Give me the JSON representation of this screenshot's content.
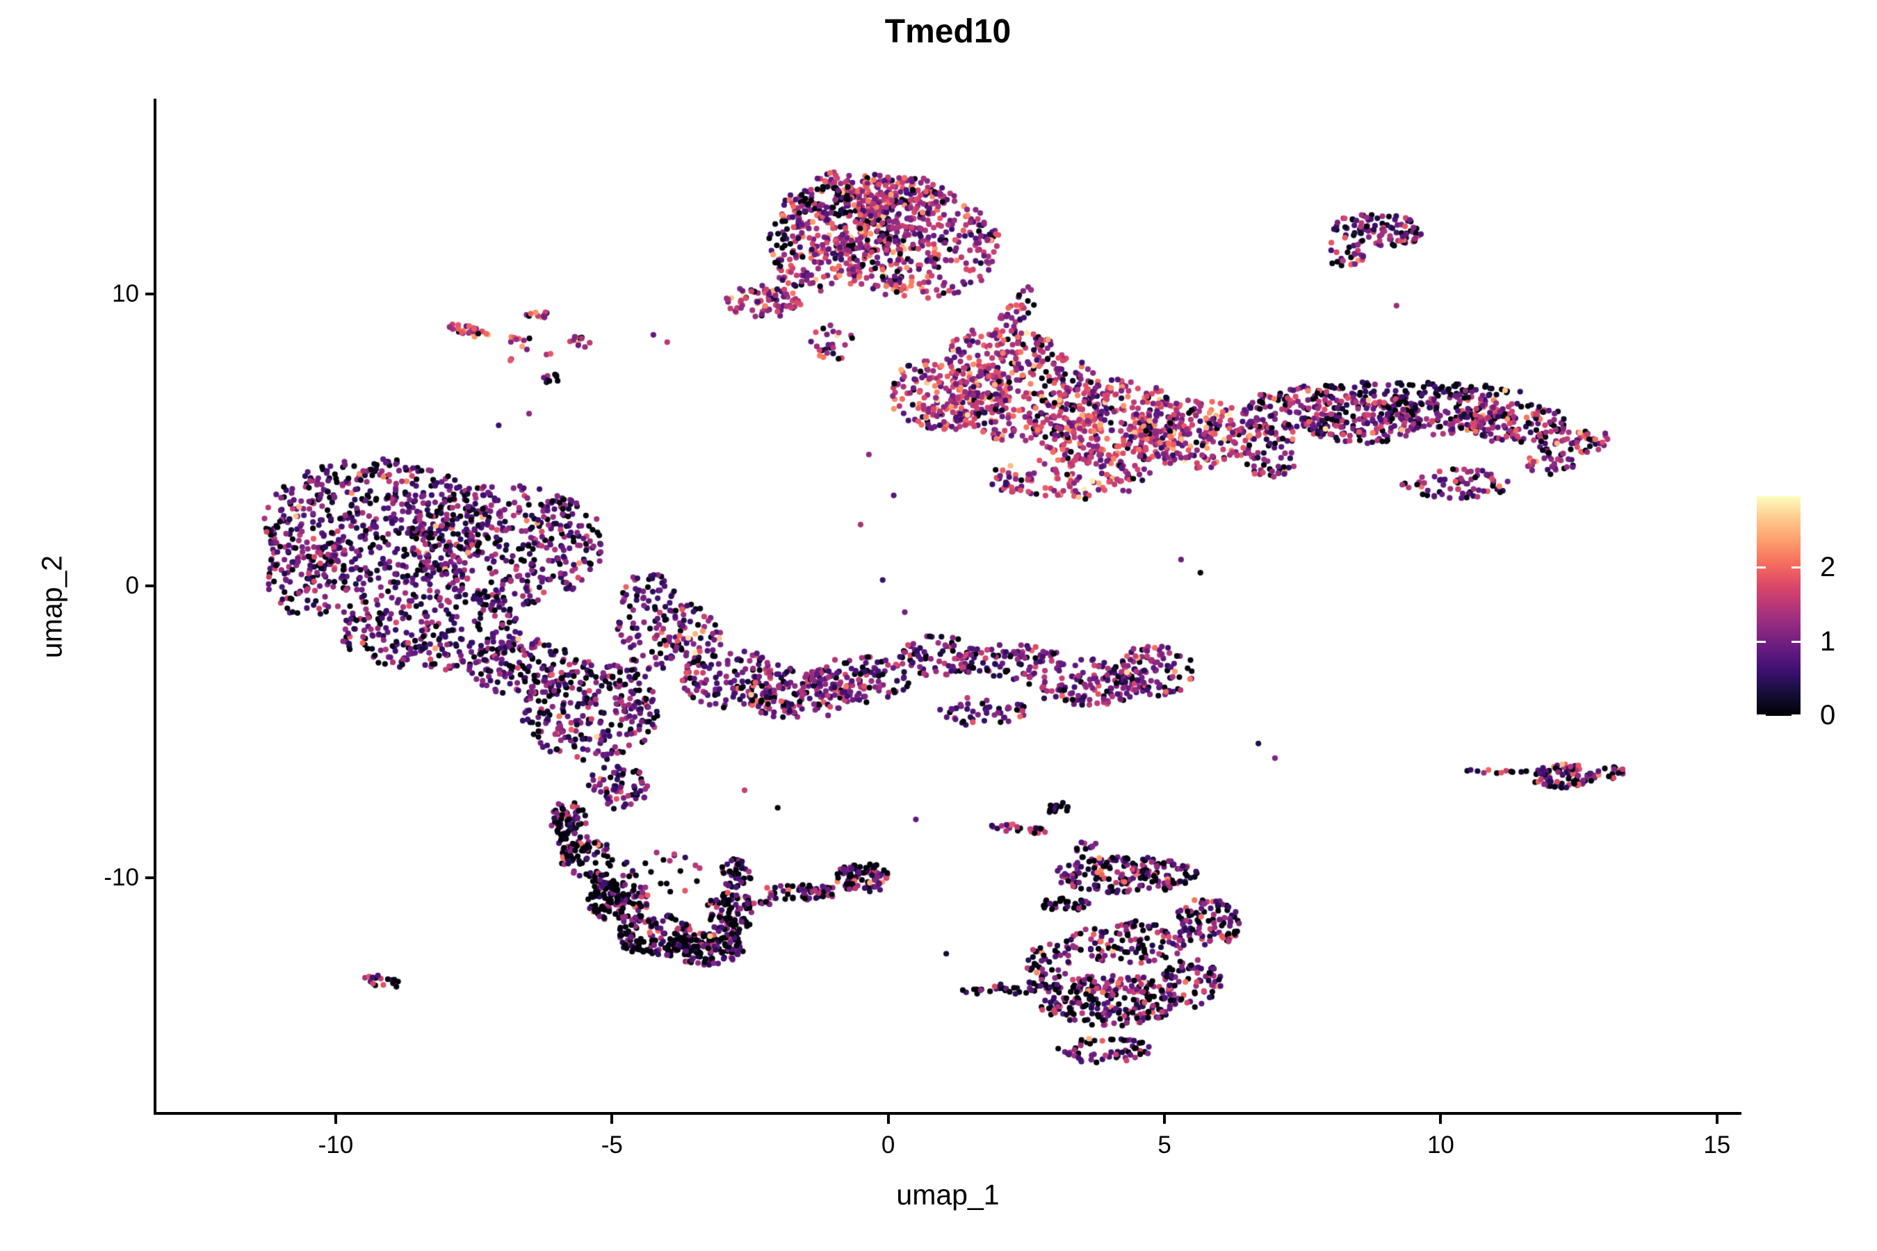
{
  "title": "Tmed10",
  "axes": {
    "x": {
      "label": "umap_1",
      "tick_labels": [
        "-10",
        "-5",
        "0",
        "5",
        "10",
        "15"
      ],
      "tick_values": [
        -10,
        -5,
        0,
        5,
        10,
        15
      ],
      "domain": [
        -13.27,
        15.43
      ]
    },
    "y": {
      "label": "umap_2",
      "tick_labels": [
        "10",
        "0",
        "-10"
      ],
      "tick_values": [
        10,
        0,
        -10
      ],
      "domain": [
        -18.07,
        16.69
      ]
    }
  },
  "colorbar": {
    "tick_labels": [
      "0",
      "1",
      "2"
    ],
    "tick_values": [
      0,
      1,
      2
    ],
    "vmin": 0,
    "vmax": 2.98,
    "palette": "magma",
    "stops": [
      "#000004",
      "#140e36",
      "#3b0f70",
      "#641a80",
      "#8c2981",
      "#b73779",
      "#de4968",
      "#f7705c",
      "#fe9f6d",
      "#feca8d",
      "#fcfdbf"
    ]
  },
  "chart_data": {
    "type": "scatter",
    "title": "Tmed10",
    "xlabel": "umap_1",
    "ylabel": "umap_2",
    "xlim": [
      -13.27,
      15.43
    ],
    "ylim": [
      -18.07,
      16.69
    ],
    "legend": "expression colorbar 0-2, magma palette, right side",
    "grid": false,
    "point_radius_px": 4.1,
    "seed": 7,
    "clusters": [
      {
        "name": "top-center",
        "expr": {
          "zero": 0.07,
          "mean": 1.35,
          "sd": 0.55
        },
        "blobs": [
          [
            -0.6,
            12.7,
            1.35,
            1.55,
            0,
            300
          ],
          [
            0.55,
            11.7,
            1.5,
            1.9,
            0,
            340
          ],
          [
            0.15,
            13.3,
            1.0,
            0.8,
            0,
            120
          ],
          [
            -2.25,
            9.75,
            0.7,
            0.55,
            0,
            80
          ],
          [
            -1.25,
            10.9,
            0.8,
            0.8,
            0,
            90
          ],
          [
            -1.0,
            8.4,
            0.4,
            0.7,
            0,
            25
          ],
          [
            2.3,
            9.3,
            0.25,
            1.1,
            -18,
            35
          ]
        ]
      },
      {
        "name": "top-center-dark-edge",
        "expr": {
          "zero": 0.5,
          "mean": 0.6,
          "sd": 0.45
        },
        "blobs": [
          [
            -1.1,
            13.2,
            0.5,
            0.6,
            0,
            40
          ],
          [
            -1.9,
            11.7,
            0.3,
            0.8,
            0,
            25
          ]
        ]
      },
      {
        "name": "top-right-island",
        "expr": {
          "zero": 0.15,
          "mean": 1.05,
          "sd": 0.5
        },
        "blobs": [
          [
            8.9,
            12.2,
            0.85,
            0.55,
            -10,
            95
          ],
          [
            8.25,
            11.4,
            0.4,
            0.45,
            0,
            25
          ]
        ]
      },
      {
        "name": "left-islands",
        "expr": {
          "zero": 0.12,
          "mean": 1.6,
          "sd": 0.55
        },
        "blobs": [
          [
            -7.6,
            8.75,
            0.42,
            0.16,
            -30,
            30
          ],
          [
            -6.85,
            8.45,
            0.4,
            0.1,
            0,
            7
          ],
          [
            -6.35,
            9.3,
            0.24,
            0.16,
            0,
            11
          ],
          [
            -5.6,
            8.35,
            0.24,
            0.2,
            0,
            11
          ],
          [
            -6.55,
            7.9,
            0.5,
            0.45,
            0,
            6
          ]
        ]
      },
      {
        "name": "left-dark-clump",
        "expr": {
          "zero": 0.5,
          "mean": 0.5,
          "sd": 0.4
        },
        "blobs": [
          [
            -6.05,
            7.1,
            0.22,
            0.17,
            0,
            9
          ]
        ]
      },
      {
        "name": "left-large",
        "expr": {
          "zero": 0.13,
          "mean": 0.85,
          "sd": 0.5
        },
        "blobs": [
          [
            -9.3,
            2.1,
            2.0,
            2.3,
            0,
            520
          ],
          [
            -6.9,
            1.4,
            1.8,
            2.1,
            0,
            430
          ],
          [
            -8.3,
            -1.4,
            1.7,
            1.5,
            0,
            270
          ],
          [
            -10.5,
            0.3,
            0.8,
            1.4,
            0,
            90
          ],
          [
            -5.4,
            -4.3,
            1.25,
            1.7,
            0,
            270
          ],
          [
            -4.9,
            -6.9,
            0.55,
            0.75,
            0,
            65
          ],
          [
            -4.35,
            -1.3,
            0.6,
            1.9,
            0,
            100
          ],
          [
            -6.6,
            -2.8,
            1.0,
            1.0,
            0,
            130
          ]
        ]
      },
      {
        "name": "mid-band",
        "expr": {
          "zero": 0.12,
          "mean": 0.95,
          "sd": 0.5
        },
        "blobs": [
          [
            -3.6,
            -1.7,
            0.6,
            1.1,
            0,
            70
          ],
          [
            -2.8,
            -3.2,
            0.95,
            1.0,
            0,
            130
          ],
          [
            -1.6,
            -3.7,
            1.0,
            0.9,
            0,
            140
          ],
          [
            -0.5,
            -3.2,
            0.9,
            0.8,
            0,
            110
          ]
        ]
      },
      {
        "name": "mid-right-arm",
        "expr": {
          "zero": 0.12,
          "mean": 1.0,
          "sd": 0.5
        },
        "blobs": [
          [
            0.9,
            -2.4,
            0.7,
            0.7,
            0,
            70
          ],
          [
            2.2,
            -2.6,
            1.0,
            0.6,
            0,
            90
          ],
          [
            3.6,
            -3.3,
            1.1,
            0.8,
            0,
            130
          ],
          [
            4.8,
            -2.9,
            0.75,
            0.9,
            0,
            90
          ],
          [
            1.7,
            -4.3,
            0.8,
            0.5,
            0,
            50
          ]
        ]
      },
      {
        "name": "central-right",
        "expr": {
          "zero": 0.06,
          "mean": 1.45,
          "sd": 0.55
        },
        "blobs": [
          [
            1.1,
            6.6,
            1.1,
            1.3,
            0,
            200
          ],
          [
            2.5,
            6.5,
            1.45,
            1.6,
            0,
            330
          ],
          [
            4.0,
            5.6,
            1.4,
            1.5,
            0,
            300
          ],
          [
            5.5,
            5.2,
            1.2,
            1.2,
            0,
            220
          ],
          [
            3.3,
            3.7,
            1.5,
            0.75,
            0,
            120
          ],
          [
            2.0,
            8.3,
            0.95,
            0.55,
            0,
            70
          ]
        ]
      },
      {
        "name": "right-elongated",
        "expr": {
          "zero": 0.14,
          "mean": 1.1,
          "sd": 0.55
        },
        "blobs": [
          [
            7.3,
            5.9,
            0.95,
            1.0,
            0,
            150
          ],
          [
            8.6,
            5.75,
            1.1,
            0.9,
            0,
            170
          ],
          [
            10.0,
            5.95,
            1.15,
            0.8,
            0,
            160
          ],
          [
            11.3,
            5.6,
            1.0,
            0.7,
            0,
            130
          ],
          [
            12.4,
            4.95,
            0.7,
            0.5,
            0,
            60
          ],
          [
            10.3,
            3.5,
            1.0,
            0.5,
            0,
            70
          ],
          [
            12.0,
            4.2,
            0.45,
            0.4,
            0,
            30
          ],
          [
            6.9,
            4.3,
            0.5,
            0.6,
            0,
            40
          ]
        ]
      },
      {
        "name": "right-elongated-top-edge",
        "expr": {
          "zero": 0.45,
          "mean": 0.6,
          "sd": 0.4
        },
        "blobs": [
          [
            9.7,
            6.75,
            1.8,
            0.22,
            -3,
            70
          ]
        ]
      },
      {
        "name": "right-island",
        "expr": {
          "zero": 0.25,
          "mean": 1.1,
          "sd": 0.6
        },
        "blobs": [
          [
            12.2,
            -6.5,
            0.6,
            0.42,
            0,
            85
          ],
          [
            11.0,
            -6.35,
            0.55,
            0.1,
            0,
            12
          ],
          [
            13.1,
            -6.4,
            0.27,
            0.22,
            0,
            18
          ]
        ]
      },
      {
        "name": "bottom-left-crescent",
        "expr": {
          "zero": 0.3,
          "mean": 0.85,
          "sd": 0.6
        },
        "blobs": [
          [
            -5.8,
            -7.95,
            0.38,
            0.55,
            0,
            45
          ],
          [
            -5.45,
            -9.3,
            0.48,
            0.7,
            0,
            70
          ],
          [
            -4.9,
            -10.8,
            0.55,
            0.75,
            0,
            90
          ],
          [
            -4.2,
            -11.9,
            0.7,
            0.65,
            0,
            110
          ],
          [
            -3.3,
            -12.45,
            0.7,
            0.55,
            0,
            110
          ],
          [
            -2.85,
            -11.2,
            0.45,
            0.75,
            0,
            80
          ],
          [
            -2.75,
            -9.85,
            0.3,
            0.5,
            0,
            40
          ],
          [
            -4.3,
            -9.9,
            0.95,
            0.8,
            0,
            35
          ]
        ]
      },
      {
        "name": "crescent-dark-edge",
        "expr": {
          "zero": 0.55,
          "mean": 0.5,
          "sd": 0.4
        },
        "blobs": [
          [
            -5.75,
            -8.6,
            0.25,
            0.8,
            10,
            40
          ],
          [
            -5.1,
            -10.4,
            0.3,
            0.8,
            0,
            40
          ],
          [
            -4.0,
            -12.35,
            0.8,
            0.3,
            0,
            50
          ],
          [
            -2.95,
            -12.0,
            0.25,
            0.8,
            0,
            30
          ]
        ]
      },
      {
        "name": "bottom-dash-island",
        "expr": {
          "zero": 0.32,
          "mean": 0.9,
          "sd": 0.55
        },
        "blobs": [
          [
            -0.45,
            -10.0,
            0.58,
            0.48,
            0,
            95
          ],
          [
            -1.6,
            -10.5,
            0.78,
            0.26,
            0,
            55
          ],
          [
            -2.3,
            -10.85,
            0.32,
            0.12,
            0,
            10
          ]
        ]
      },
      {
        "name": "tiny-bottom-left-island",
        "expr": {
          "zero": 0.3,
          "mean": 1.0,
          "sd": 0.6
        },
        "blobs": [
          [
            -9.15,
            -13.55,
            0.36,
            0.18,
            -20,
            16
          ]
        ]
      },
      {
        "name": "bottom-right-black-clump",
        "expr": {
          "zero": 0.65,
          "mean": 0.35,
          "sd": 0.3
        },
        "blobs": [
          [
            3.05,
            -7.6,
            0.22,
            0.22,
            0,
            14
          ]
        ]
      },
      {
        "name": "bottom-right-pink-streak",
        "expr": {
          "zero": 0.12,
          "mean": 1.5,
          "sd": 0.6
        },
        "blobs": [
          [
            2.35,
            -8.3,
            0.55,
            0.15,
            -12,
            22
          ]
        ]
      },
      {
        "name": "bottom-right-main",
        "expr": {
          "zero": 0.25,
          "mean": 0.95,
          "sd": 0.55
        },
        "blobs": [
          [
            3.6,
            -9.0,
            0.2,
            0.35,
            0,
            12
          ],
          [
            4.3,
            -9.9,
            1.3,
            0.62,
            0,
            190
          ],
          [
            5.8,
            -11.5,
            0.6,
            0.85,
            0,
            90
          ],
          [
            4.3,
            -12.2,
            1.1,
            0.75,
            0,
            110
          ],
          [
            4.0,
            -14.2,
            1.3,
            0.9,
            0,
            250
          ],
          [
            5.5,
            -13.6,
            0.55,
            0.85,
            0,
            70
          ],
          [
            3.9,
            -15.9,
            0.85,
            0.45,
            0,
            60
          ],
          [
            2.9,
            -12.9,
            0.4,
            0.65,
            0,
            40
          ]
        ]
      },
      {
        "name": "bottom-right-left-arm",
        "expr": {
          "zero": 0.45,
          "mean": 0.8,
          "sd": 0.5
        },
        "blobs": [
          [
            2.2,
            -13.8,
            0.95,
            0.2,
            5,
            40
          ]
        ]
      },
      {
        "name": "bottom-right-dark-streak",
        "expr": {
          "zero": 0.5,
          "mean": 0.7,
          "sd": 0.5
        },
        "blobs": [
          [
            3.2,
            -10.9,
            0.5,
            0.22,
            0,
            30
          ]
        ]
      }
    ],
    "stray_points": [
      [
        -4.25,
        8.6,
        0.9
      ],
      [
        -4.0,
        8.35,
        1.5
      ],
      [
        -0.35,
        4.5,
        1.2
      ],
      [
        0.1,
        3.1,
        0.8
      ],
      [
        -0.5,
        2.1,
        1.4
      ],
      [
        5.3,
        0.9,
        1.0
      ],
      [
        5.65,
        0.45,
        0.05
      ],
      [
        9.2,
        9.6,
        1.3
      ],
      [
        6.7,
        -5.4,
        0.4
      ],
      [
        7.0,
        -5.9,
        1.1
      ],
      [
        -2.0,
        -7.6,
        0.05
      ],
      [
        -2.6,
        -7.0,
        1.6
      ],
      [
        0.5,
        -8.0,
        0.9
      ],
      [
        1.05,
        -12.6,
        0.3
      ],
      [
        -6.5,
        5.9,
        1.2
      ],
      [
        -7.05,
        5.5,
        0.6
      ],
      [
        0.3,
        -0.9,
        1.0
      ],
      [
        -0.1,
        0.2,
        0.6
      ]
    ]
  }
}
